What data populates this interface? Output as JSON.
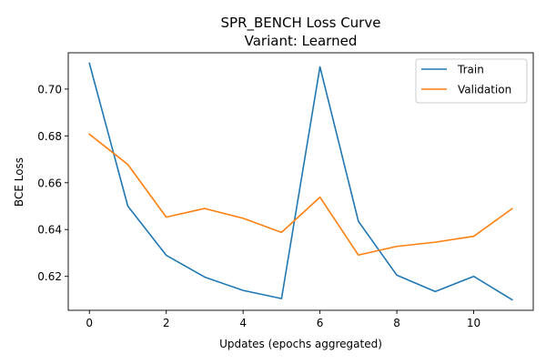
{
  "chart_data": {
    "type": "line",
    "title": "SPR_BENCH Loss Curve",
    "subtitle": "Variant: Learned",
    "xlabel": "Updates (epochs aggregated)",
    "ylabel": "BCE Loss",
    "x": [
      0,
      1,
      2,
      3,
      4,
      5,
      6,
      7,
      8,
      9,
      10,
      11
    ],
    "xlim": [
      -0.55,
      11.55
    ],
    "ylim": [
      0.6055,
      0.7155
    ],
    "xticks": [
      0,
      2,
      4,
      6,
      8,
      10
    ],
    "yticks": [
      0.62,
      0.64,
      0.66,
      0.68,
      0.7
    ],
    "xtick_labels": [
      "0",
      "2",
      "4",
      "6",
      "8",
      "10"
    ],
    "ytick_labels": [
      "0.62",
      "0.64",
      "0.66",
      "0.68",
      "0.70"
    ],
    "grid": false,
    "legend_position": "top-right",
    "series": [
      {
        "name": "Train",
        "color": "#1f77b4",
        "values": [
          0.711,
          0.65,
          0.629,
          0.6197,
          0.614,
          0.6105,
          0.7095,
          0.6435,
          0.6205,
          0.6135,
          0.62,
          0.61
        ]
      },
      {
        "name": "Validation",
        "color": "#ff7f0e",
        "values": [
          0.6807,
          0.6678,
          0.6453,
          0.649,
          0.6448,
          0.6388,
          0.6538,
          0.6291,
          0.6328,
          0.6346,
          0.6371,
          0.6489
        ]
      }
    ]
  }
}
